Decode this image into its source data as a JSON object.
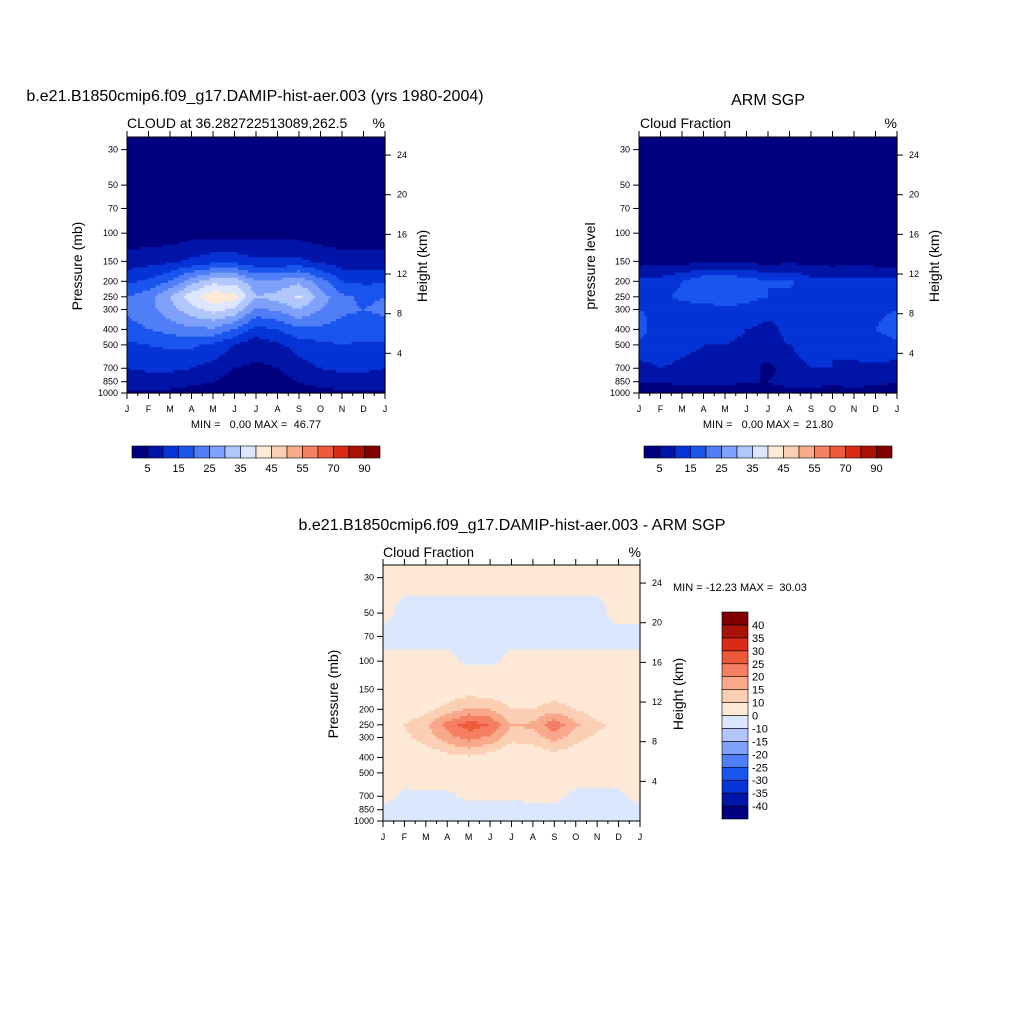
{
  "chart_data": [
    {
      "type": "heatmap",
      "id": "model",
      "title": "b.e21.B1850cmip6.f09_g17.DAMIP-hist-aer.003 (yrs 1980-2004)",
      "left_label": "CLOUD at 36.282722513089,262.5",
      "units": "%",
      "ylabel": "Pressure (mb)",
      "ylabel_right": "Height (km)",
      "x_ticks": [
        "J",
        "F",
        "M",
        "A",
        "M",
        "J",
        "J",
        "A",
        "S",
        "O",
        "N",
        "D",
        "J"
      ],
      "y_ticks": [
        30,
        50,
        70,
        100,
        150,
        200,
        250,
        300,
        400,
        500,
        700,
        850,
        1000
      ],
      "y_ticks_right": [
        24,
        20,
        16,
        12,
        8,
        4
      ],
      "ylim": [
        1000,
        25
      ],
      "stats": "MIN =   0.00 MAX =  46.77",
      "min": 0.0,
      "max": 46.77,
      "colorbar_orientation": "horizontal",
      "colorbar_levels": [
        5,
        10,
        15,
        20,
        25,
        30,
        35,
        40,
        45,
        50,
        55,
        60,
        70,
        80,
        90
      ],
      "colorbar_labels": [
        "5",
        "15",
        "25",
        "35",
        "45",
        "55",
        "70",
        "90"
      ],
      "colorbar_colors": [
        "#00007f",
        "#0015a8",
        "#0533d6",
        "#1a55ee",
        "#4f7ef7",
        "#7fa1fa",
        "#b1c7fc",
        "#dce7fd",
        "#fde9d6",
        "#fbcfb4",
        "#f8a98a",
        "#f47f62",
        "#ef5a3b",
        "#dc2b15",
        "#ab1207",
        "#7f0000"
      ],
      "profiles": [
        {
          "month": 0,
          "values": [
            0,
            0,
            0,
            2,
            7,
            14,
            20,
            21,
            18,
            14,
            10,
            7,
            4
          ]
        },
        {
          "month": 1,
          "values": [
            0,
            0,
            0,
            2,
            8,
            16,
            23,
            23,
            20,
            15,
            11,
            7,
            4
          ]
        },
        {
          "month": 2,
          "values": [
            0,
            0,
            0,
            2,
            9,
            20,
            30,
            28,
            22,
            16,
            11,
            7,
            4
          ]
        },
        {
          "month": 3,
          "values": [
            0,
            0,
            0,
            3,
            11,
            28,
            38,
            33,
            24,
            16,
            10,
            6,
            3
          ]
        },
        {
          "month": 4,
          "values": [
            0,
            0,
            0,
            3,
            13,
            33,
            44,
            37,
            24,
            14,
            8,
            5,
            3
          ]
        },
        {
          "month": 5,
          "values": [
            0,
            0,
            0,
            3,
            13,
            33,
            42,
            34,
            20,
            10,
            5,
            3,
            2
          ]
        },
        {
          "month": 6,
          "values": [
            0,
            0,
            0,
            3,
            11,
            26,
            30,
            24,
            13,
            7,
            4,
            2,
            2
          ]
        },
        {
          "month": 7,
          "values": [
            0,
            0,
            0,
            3,
            11,
            26,
            32,
            26,
            15,
            9,
            5,
            3,
            2
          ]
        },
        {
          "month": 8,
          "values": [
            0,
            0,
            0,
            3,
            11,
            29,
            36,
            30,
            19,
            12,
            8,
            5,
            3
          ]
        },
        {
          "month": 9,
          "values": [
            0,
            0,
            0,
            2,
            9,
            22,
            28,
            25,
            19,
            14,
            10,
            7,
            3
          ]
        },
        {
          "month": 10,
          "values": [
            0,
            0,
            0,
            2,
            7,
            15,
            21,
            21,
            18,
            15,
            11,
            8,
            4
          ]
        },
        {
          "month": 11,
          "values": [
            0,
            0,
            0,
            2,
            7,
            14,
            19,
            20,
            18,
            14,
            11,
            8,
            4
          ]
        },
        {
          "month": 12,
          "values": [
            0,
            0,
            0,
            2,
            7,
            14,
            20,
            21,
            18,
            14,
            10,
            7,
            4
          ]
        }
      ]
    },
    {
      "type": "heatmap",
      "id": "obs",
      "title": "ARM SGP",
      "left_label": "Cloud Fraction",
      "units": "%",
      "ylabel": "pressure level",
      "ylabel_right": "Height (km)",
      "x_ticks": [
        "J",
        "F",
        "M",
        "A",
        "M",
        "J",
        "J",
        "A",
        "S",
        "O",
        "N",
        "D",
        "J"
      ],
      "y_ticks": [
        30,
        50,
        70,
        100,
        150,
        200,
        250,
        300,
        400,
        500,
        700,
        850,
        1000
      ],
      "y_ticks_right": [
        24,
        20,
        16,
        12,
        8,
        4
      ],
      "ylim": [
        1000,
        25
      ],
      "stats": "MIN =   0.00 MAX =  21.80",
      "min": 0.0,
      "max": 21.8,
      "colorbar_orientation": "horizontal",
      "colorbar_levels": [
        5,
        10,
        15,
        20,
        25,
        30,
        35,
        40,
        45,
        50,
        55,
        60,
        70,
        80,
        90
      ],
      "colorbar_labels": [
        "5",
        "15",
        "25",
        "35",
        "45",
        "55",
        "70",
        "90"
      ],
      "colorbar_colors": [
        "#00007f",
        "#0015a8",
        "#0533d6",
        "#1a55ee",
        "#4f7ef7",
        "#7fa1fa",
        "#b1c7fc",
        "#dce7fd",
        "#fde9d6",
        "#fbcfb4",
        "#f8a98a",
        "#f47f62",
        "#ef5a3b",
        "#dc2b15",
        "#ab1207",
        "#7f0000"
      ],
      "profiles": [
        {
          "month": 0,
          "values": [
            0,
            0,
            0,
            1,
            3,
            11,
            15,
            15,
            17,
            14,
            8,
            5,
            3
          ]
        },
        {
          "month": 1,
          "values": [
            0,
            0,
            0,
            1,
            3,
            12,
            14,
            14,
            12,
            13,
            10,
            5,
            3
          ]
        },
        {
          "month": 2,
          "values": [
            0,
            0,
            0,
            1,
            3,
            15,
            16,
            13,
            11,
            11,
            9,
            6,
            3
          ]
        },
        {
          "month": 3,
          "values": [
            0,
            0,
            0,
            1,
            4,
            19,
            17,
            13,
            11,
            10,
            9,
            6,
            3
          ]
        },
        {
          "month": 4,
          "values": [
            0,
            0,
            0,
            1,
            4,
            19,
            18,
            14,
            12,
            10,
            9,
            6,
            3
          ]
        },
        {
          "month": 5,
          "values": [
            0,
            0,
            0,
            1,
            4,
            18,
            17,
            13,
            10,
            9,
            8,
            5,
            3
          ]
        },
        {
          "month": 6,
          "values": [
            0,
            0,
            0,
            1,
            3,
            15,
            15,
            11,
            9,
            9,
            3,
            5,
            3
          ]
        },
        {
          "month": 7,
          "values": [
            0,
            0,
            0,
            1,
            4,
            16,
            14,
            11,
            11,
            10,
            9,
            7,
            3
          ]
        },
        {
          "month": 8,
          "values": [
            0,
            0,
            0,
            1,
            3,
            12,
            13,
            11,
            12,
            11,
            10,
            7,
            3
          ]
        },
        {
          "month": 9,
          "values": [
            0,
            0,
            0,
            1,
            3,
            11,
            13,
            12,
            10,
            10,
            10,
            6,
            3
          ]
        },
        {
          "month": 10,
          "values": [
            0,
            0,
            0,
            1,
            3,
            12,
            13,
            12,
            11,
            12,
            9,
            7,
            3
          ]
        },
        {
          "month": 11,
          "values": [
            0,
            0,
            0,
            1,
            3,
            11,
            14,
            14,
            15,
            13,
            9,
            6,
            3
          ]
        },
        {
          "month": 12,
          "values": [
            0,
            0,
            0,
            1,
            3,
            11,
            15,
            15,
            17,
            14,
            8,
            5,
            3
          ]
        }
      ]
    },
    {
      "type": "heatmap",
      "id": "diff",
      "title": "b.e21.B1850cmip6.f09_g17.DAMIP-hist-aer.003 - ARM SGP",
      "left_label": "Cloud Fraction",
      "units": "%",
      "ylabel": "Pressure (mb)",
      "ylabel_right": "Height (km)",
      "x_ticks": [
        "J",
        "F",
        "M",
        "A",
        "M",
        "J",
        "J",
        "A",
        "S",
        "O",
        "N",
        "D",
        "J"
      ],
      "y_ticks": [
        30,
        50,
        70,
        100,
        150,
        200,
        250,
        300,
        400,
        500,
        700,
        850,
        1000
      ],
      "y_ticks_right": [
        24,
        20,
        16,
        12,
        8,
        4
      ],
      "ylim": [
        1000,
        25
      ],
      "stats": "MIN = -12.23 MAX =  30.03",
      "min": -12.23,
      "max": 30.03,
      "colorbar_orientation": "vertical",
      "colorbar_levels": [
        -40,
        -35,
        -30,
        -25,
        -20,
        -15,
        -10,
        0,
        10,
        15,
        20,
        25,
        30,
        35,
        40
      ],
      "colorbar_labels": [
        "-40",
        "-35",
        "-30",
        "-25",
        "-20",
        "-15",
        "-10",
        "0",
        "10",
        "15",
        "20",
        "25",
        "30",
        "35",
        "40"
      ],
      "colorbar_colors": [
        "#00007f",
        "#0015a8",
        "#0533d6",
        "#1a55ee",
        "#4f7ef7",
        "#7fa1fa",
        "#b1c7fc",
        "#dce7fd",
        "#fde9d6",
        "#fbcfb4",
        "#f8a98a",
        "#f47f62",
        "#ef5a3b",
        "#dc2b15",
        "#ab1207",
        "#7f0000"
      ],
      "profiles": [
        {
          "month": 0,
          "values": [
            1,
            1,
            -1,
            1,
            4,
            5,
            8,
            6,
            3,
            2,
            2,
            -2,
            -2
          ]
        },
        {
          "month": 1,
          "values": [
            1,
            -1,
            -1,
            1,
            4,
            6,
            10,
            9,
            5,
            2,
            -1,
            -2,
            -2
          ]
        },
        {
          "month": 2,
          "values": [
            1,
            -1,
            -1,
            1,
            4,
            8,
            14,
            12,
            6,
            3,
            -1,
            -2,
            -2
          ]
        },
        {
          "month": 3,
          "values": [
            1,
            -1,
            -1,
            1,
            6,
            12,
            22,
            18,
            8,
            3,
            -1,
            -2,
            -3
          ]
        },
        {
          "month": 4,
          "values": [
            1,
            -1,
            -1,
            -1,
            7,
            16,
            28,
            22,
            9,
            3,
            1,
            -2,
            -2
          ]
        },
        {
          "month": 5,
          "values": [
            1,
            -1,
            -1,
            -1,
            6,
            15,
            25,
            19,
            7,
            2,
            1,
            -2,
            -2
          ]
        },
        {
          "month": 6,
          "values": [
            1,
            -1,
            -1,
            1,
            5,
            10,
            15,
            12,
            4,
            2,
            1,
            -2,
            -2
          ]
        },
        {
          "month": 7,
          "values": [
            1,
            -1,
            -1,
            1,
            5,
            10,
            16,
            13,
            5,
            2,
            1,
            -1,
            -2
          ]
        },
        {
          "month": 8,
          "values": [
            1,
            -1,
            -1,
            1,
            6,
            13,
            24,
            17,
            7,
            2,
            1,
            -1,
            -2
          ]
        },
        {
          "month": 9,
          "values": [
            1,
            -1,
            -1,
            1,
            5,
            10,
            16,
            12,
            6,
            2,
            -1,
            -2,
            -3
          ]
        },
        {
          "month": 10,
          "values": [
            1,
            -1,
            -1,
            1,
            4,
            7,
            11,
            9,
            5,
            2,
            -1,
            -2,
            -3
          ]
        },
        {
          "month": 11,
          "values": [
            1,
            1,
            -1,
            1,
            4,
            6,
            9,
            7,
            4,
            2,
            -1,
            -2,
            -2
          ]
        },
        {
          "month": 12,
          "values": [
            1,
            1,
            -1,
            1,
            4,
            5,
            8,
            6,
            3,
            2,
            2,
            -2,
            -2
          ]
        }
      ]
    }
  ]
}
